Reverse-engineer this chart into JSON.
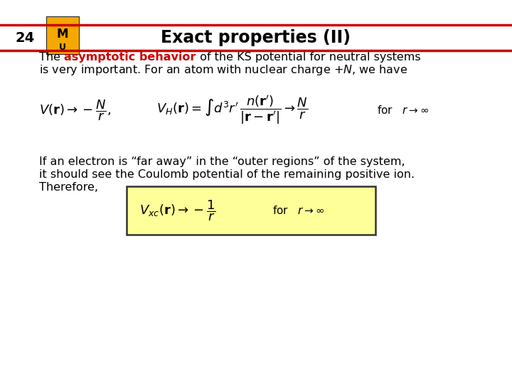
{
  "title": "Exact properties (II)",
  "slide_number": "24",
  "background_color": "#ffffff",
  "title_color": "#000000",
  "title_bar_color": "#cc0000",
  "title_fontsize": 17,
  "slide_num_fontsize": 14,
  "body_fontsize": 11.5,
  "highlight_color": "#cc0000",
  "box_fill_color": "#ffff99",
  "box_edge_color": "#555555",
  "paragraph2_line1": "If an electron is “far away” in the “outer regions” of the system,",
  "paragraph2_line2": "it should see the Coulomb potential of the remaining positive ion.",
  "paragraph2_line3": "Therefore,"
}
